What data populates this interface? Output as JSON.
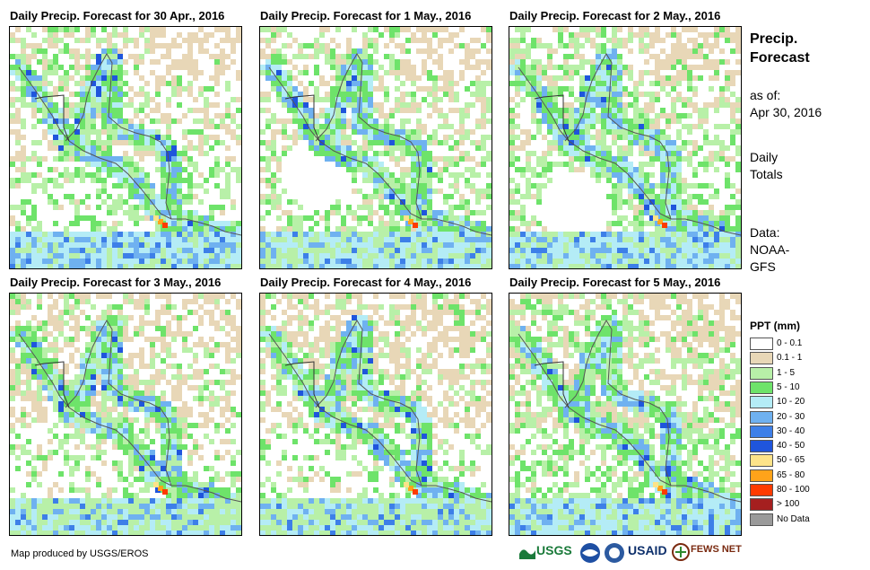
{
  "panels": [
    {
      "title": "Daily Precip. Forecast for 30 Apr., 2016"
    },
    {
      "title": "Daily Precip. Forecast for 1 May., 2016"
    },
    {
      "title": "Daily Precip. Forecast for 2 May., 2016"
    },
    {
      "title": "Daily Precip. Forecast for 3 May., 2016"
    },
    {
      "title": "Daily Precip. Forecast for 4 May., 2016"
    },
    {
      "title": "Daily Precip. Forecast for 5 May., 2016"
    }
  ],
  "sidebar": {
    "heading1": "Precip.",
    "heading2": "Forecast",
    "asof_label": "as of:",
    "asof_date": "Apr 30, 2016",
    "daily1": "Daily",
    "daily2": "Totals",
    "data_label": "Data:",
    "data_src1": "NOAA-",
    "data_src2": "GFS"
  },
  "legend": {
    "title": "PPT (mm)",
    "items": [
      {
        "label": "0 - 0.1",
        "color": "#ffffff"
      },
      {
        "label": "0.1 - 1",
        "color": "#e8d7b7"
      },
      {
        "label": "1 - 5",
        "color": "#b8f0a8"
      },
      {
        "label": "5 - 10",
        "color": "#6ee36a"
      },
      {
        "label": "10 - 20",
        "color": "#b4ecf6"
      },
      {
        "label": "20 - 30",
        "color": "#6fb1f0"
      },
      {
        "label": "30 - 40",
        "color": "#3d7fe8"
      },
      {
        "label": "40 - 50",
        "color": "#1f55dc"
      },
      {
        "label": "50 - 65",
        "color": "#fde389"
      },
      {
        "label": "65 - 80",
        "color": "#ffa31a"
      },
      {
        "label": "80 - 100",
        "color": "#ff3b00"
      },
      {
        "label": "> 100",
        "color": "#a51f1f"
      },
      {
        "label": "No Data",
        "color": "#9a9a9a"
      }
    ]
  },
  "footer": {
    "credit": "Map produced by USGS/EROS",
    "logo_usgs": "USGS",
    "logo_usaid": "USAID",
    "logo_fews": "FEWS NET"
  },
  "map_style": {
    "ocean": "#ffffff",
    "coast": "#555555"
  }
}
